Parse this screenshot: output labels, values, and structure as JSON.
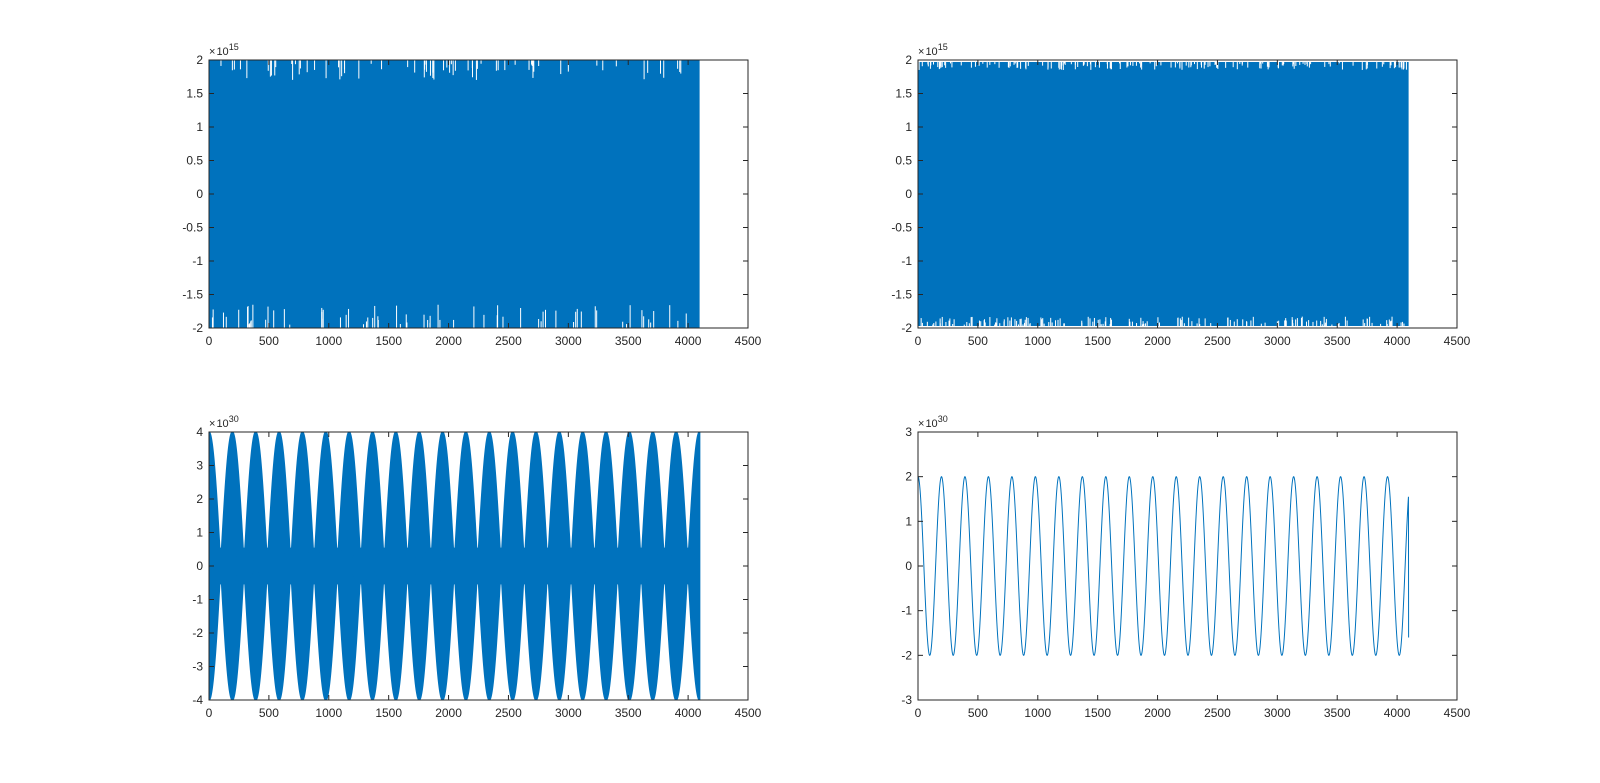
{
  "figure": {
    "background": "#ffffff",
    "axis_color": "#262626",
    "series_color": "#0072BD"
  },
  "chart_data": [
    {
      "type": "line",
      "title": "",
      "xlabel": "",
      "ylabel": "",
      "xlim": [
        0,
        4500
      ],
      "ylim": [
        -2,
        2
      ],
      "xticks": [
        "0",
        "500",
        "1000",
        "1500",
        "2000",
        "2500",
        "3000",
        "3500",
        "4000",
        "4500"
      ],
      "yticks": [
        "-2",
        "-1.5",
        "-1",
        "-0.5",
        "0",
        "0.5",
        "1",
        "1.5",
        "2"
      ],
      "y_multiplier": "10",
      "y_exponent": "15",
      "grid": false,
      "legend": "none",
      "series": [
        {
          "sample_count": 4096,
          "x_range": [
            0,
            4096
          ],
          "envelope": "dense band filling [-2, 2] x 10^15 over the full x range",
          "envelope_y": [
            -2,
            2
          ]
        }
      ]
    },
    {
      "type": "line",
      "title": "",
      "xlabel": "",
      "ylabel": "",
      "xlim": [
        0,
        4500
      ],
      "ylim": [
        -2,
        2
      ],
      "xticks": [
        "0",
        "500",
        "1000",
        "1500",
        "2000",
        "2500",
        "3000",
        "3500",
        "4000",
        "4500"
      ],
      "yticks": [
        "-2",
        "-1.5",
        "-1",
        "-0.5",
        "0",
        "0.5",
        "1",
        "1.5",
        "2"
      ],
      "y_multiplier": "10",
      "y_exponent": "15",
      "grid": false,
      "legend": "none",
      "series": [
        {
          "sample_count": 4096,
          "x_range": [
            0,
            4096
          ],
          "envelope": "dense band filling about [-1.97, 1.97] x 10^15 over the full x range",
          "envelope_y": [
            -1.97,
            1.97
          ]
        }
      ]
    },
    {
      "type": "line",
      "title": "",
      "xlabel": "",
      "ylabel": "",
      "xlim": [
        0,
        4500
      ],
      "ylim": [
        -4,
        4
      ],
      "xticks": [
        "0",
        "500",
        "1000",
        "1500",
        "2000",
        "2500",
        "3000",
        "3500",
        "4000",
        "4500"
      ],
      "yticks": [
        "-4",
        "-3",
        "-2",
        "-1",
        "0",
        "1",
        "2",
        "3",
        "4"
      ],
      "y_multiplier": "10",
      "y_exponent": "30",
      "grid": false,
      "legend": "none",
      "series": [
        {
          "sample_count": 4096,
          "x_range": [
            0,
            4096
          ],
          "envelope": "fast oscillation inside a beating envelope reaching +/-4 x 10^30 about every 195 samples",
          "peak_amplitude": 4,
          "beat_period": 195
        }
      ]
    },
    {
      "type": "line",
      "title": "",
      "xlabel": "",
      "ylabel": "",
      "xlim": [
        0,
        4500
      ],
      "ylim": [
        -3,
        3
      ],
      "xticks": [
        "0",
        "500",
        "1000",
        "1500",
        "2000",
        "2500",
        "3000",
        "3500",
        "4000",
        "4500"
      ],
      "yticks": [
        "-3",
        "-2",
        "-1",
        "0",
        "1",
        "2",
        "3"
      ],
      "y_multiplier": "10",
      "y_exponent": "30",
      "grid": false,
      "legend": "none",
      "series": [
        {
          "sample_count": 4096,
          "x_range": [
            0,
            4096
          ],
          "envelope": "cosine with amplitude 2 x 10^30, period about 196 samples, starting at 2 and ending near -1.6",
          "amplitude": 2,
          "period": 196,
          "end_value": -1.6
        }
      ]
    }
  ]
}
